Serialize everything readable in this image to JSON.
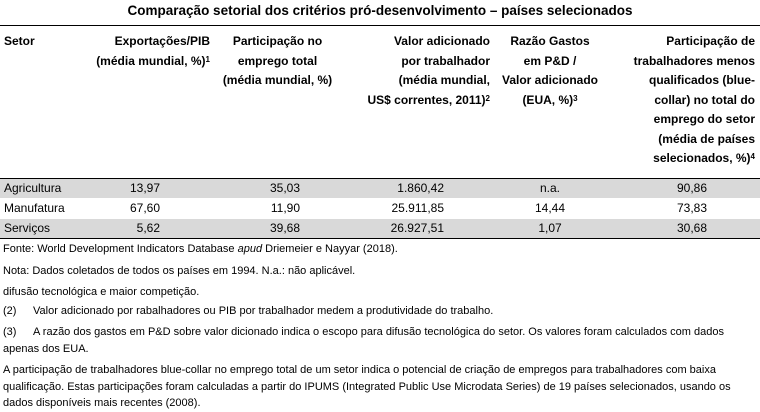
{
  "title": "Comparação setorial dos critérios pró-desenvolvimento – países selecionados",
  "headers": {
    "sector": "Setor",
    "exports": [
      "Exportações/PIB",
      "(média mundial, %)"
    ],
    "exports_sup": "1",
    "employment": [
      "Participação no",
      "emprego total",
      "(média mundial, %)"
    ],
    "value_added": [
      "Valor adicionado",
      "por trabalhador",
      "(média mundial,",
      "US$ correntes, 2011)"
    ],
    "value_added_sup": "2",
    "rd": [
      "Razão Gastos",
      "em P&D /",
      "Valor adicionado",
      "(EUA, %)"
    ],
    "rd_sup": "3",
    "bluecollar": [
      "Participação de",
      "trabalhadores menos",
      "qualificados (blue-",
      "collar) no total do",
      "emprego do setor",
      "(média de países",
      "selecionados, %)"
    ],
    "bluecollar_sup": "4"
  },
  "rows": [
    {
      "sector": "Agricultura",
      "exports": "13,97",
      "employment": "35,03",
      "value_added": "1.860,42",
      "rd": "n.a.",
      "bluecollar": "90,86"
    },
    {
      "sector": "Manufatura",
      "exports": "67,60",
      "employment": "11,90",
      "value_added": "25.911,85",
      "rd": "14,44",
      "bluecollar": "73,83"
    },
    {
      "sector": "Serviços",
      "exports": "5,62",
      "employment": "39,68",
      "value_added": "26.927,51",
      "rd": "1,07",
      "bluecollar": "30,68"
    }
  ],
  "notes": {
    "source_pre": "Fonte: World Development Indicators Database ",
    "source_italic": "apud",
    "source_post": " Driemeier e Nayyar (2018).",
    "note": "Nota: Dados coletados de todos os países em 1994. N.a.: não aplicável.",
    "n1": "difusão tecnológica e maior competição.",
    "n2_num": "(2)",
    "n2": "Valor adicionado por rabalhadores ou PIB por trabalhador medem a produtividade do trabalho.",
    "n3_num": "(3)",
    "n3": "A razão dos gastos em P&D sobre valor dicionado indica o escopo para difusão tecnológica do setor. Os valores foram calculados com dados apenas dos EUA.",
    "n4": "A participação de trabalhadores blue-collar no emprego total de um setor indica o potencial de criação de empregos para trabalhadores com baixa qualificação. Estas participações foram calculadas a partir do IPUMS (Integrated Public Use Microdata Series) de 19 países selecionados, usando os dados disponíveis mais recentes (2008)."
  }
}
